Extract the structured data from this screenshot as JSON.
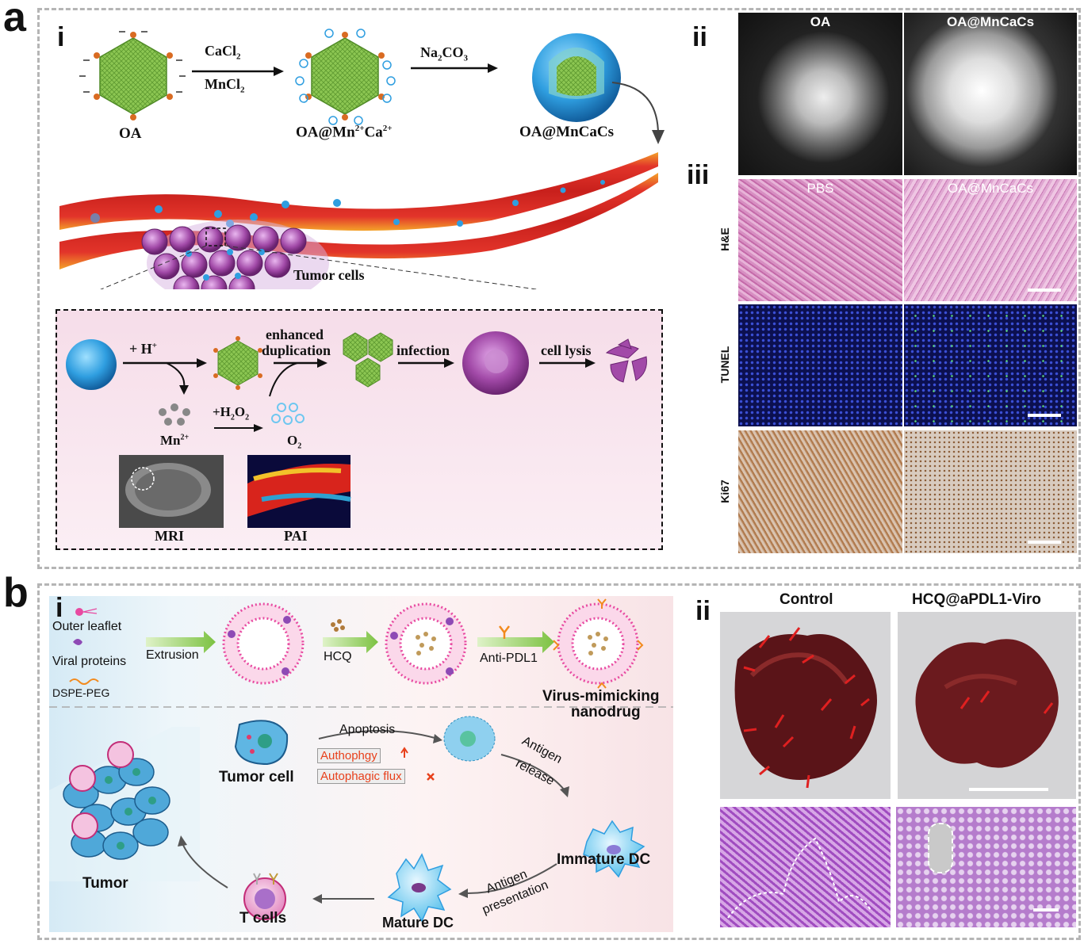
{
  "panel_a": {
    "letter": "a",
    "sub_i": "i",
    "sub_ii": "ii",
    "sub_iii": "iii",
    "synthesis": {
      "step1_top": "CaCl",
      "step1_top_sub": "2",
      "step1_bottom": "MnCl",
      "step1_bottom_sub": "2",
      "step2_top": "Na",
      "step2_top_sub1": "2",
      "step2_top_mid": "CO",
      "step2_top_sub2": "3",
      "label_oa": "OA",
      "label_mid_a": "OA@Mn",
      "label_mid_sup1": "2+",
      "label_mid_b": "Ca",
      "label_mid_sup2": "2+",
      "label_final": "OA@MnCaCs"
    },
    "tumor_label": "Tumor cells",
    "mechanism": {
      "h_plus": "+ H",
      "h_plus_sup": "+",
      "enhanced": "enhanced",
      "duplication": "duplication",
      "infection": "infection",
      "cell_lysis": "cell lysis",
      "mn": "Mn",
      "mn_sup": "2+",
      "h2o2_a": "+H",
      "h2o2_sub1": "2",
      "h2o2_b": "O",
      "h2o2_sub2": "2",
      "o2": "O",
      "o2_sub": "2",
      "mri": "MRI",
      "pai": "PAI"
    },
    "tem": {
      "left": "OA",
      "right": "OA@MnCaCs"
    },
    "histology": {
      "col_left": "PBS",
      "col_right": "OA@MnCaCs",
      "rows": [
        "H&E",
        "TUNEL",
        "Ki67"
      ]
    }
  },
  "panel_b": {
    "letter": "b",
    "sub_i": "i",
    "sub_ii": "ii",
    "legend": {
      "outer_leaflet": "Outer leaflet",
      "viral_proteins": "Viral proteins",
      "dspe_peg": "DSPE-PEG"
    },
    "assembly": {
      "extrusion": "Extrusion",
      "hcq": "HCQ",
      "anti_pdl1": "Anti-PDL1",
      "product_line1": "Virus-mimicking",
      "product_line2": "nanodrug"
    },
    "cycle": {
      "tumor": "Tumor",
      "tumor_cell": "Tumor cell",
      "apoptosis": "Apoptosis",
      "autophagy": "Authophgy",
      "autophagic_flux": "Autophagic flux",
      "antigen_release_1": "Antigen",
      "antigen_release_2": "release",
      "immature_dc": "Immature DC",
      "antigen_presentation_1": "Antigen",
      "antigen_presentation_2": "presentation",
      "mature_dc": "Mature DC",
      "t_cells": "T cells"
    },
    "photos": {
      "left": "Control",
      "right": "HCQ@aPDL1-Viro"
    }
  },
  "colors": {
    "panel_border": "#b5b5b5",
    "vessel_red": "#c8201c",
    "vessel_orange": "#f4a32a",
    "virus_green": "#7fbf4a",
    "tumor_purple": "#a24aa8",
    "nanoparticle_blue": "#2f9ee0",
    "arrow_red": "#e02020",
    "autophagy_red": "#e8411c"
  }
}
